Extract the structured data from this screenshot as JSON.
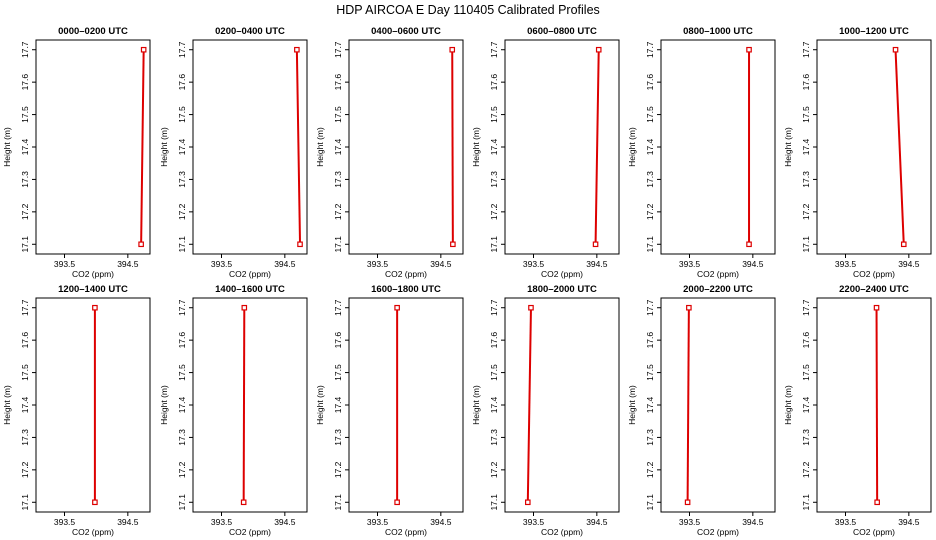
{
  "title": "HDP AIRCOA E  Day 110405  Calibrated Profiles",
  "colors": {
    "series": "#dd0000",
    "axis": "#000000",
    "background": "#ffffff"
  },
  "chart_data": [
    {
      "type": "line",
      "title": "0000–0200 UTC",
      "xlabel": "CO2 (ppm)",
      "ylabel": "Height (m)",
      "xlim": [
        393.05,
        394.85
      ],
      "ylim": [
        17.07,
        17.73
      ],
      "xticks": [
        393.5,
        394.5
      ],
      "xtick_labels": [
        "393.5",
        "394.5"
      ],
      "yticks": [
        17.1,
        17.2,
        17.3,
        17.4,
        17.5,
        17.6,
        17.7
      ],
      "ytick_labels": [
        "17.1",
        "17.2",
        "17.3",
        "17.4",
        "17.5",
        "17.6",
        "17.7"
      ],
      "series": [
        {
          "x": [
            394.71,
            394.75
          ],
          "y": [
            17.1,
            17.7
          ]
        }
      ]
    },
    {
      "type": "line",
      "title": "0200–0400 UTC",
      "xlabel": "CO2 (ppm)",
      "ylabel": "Height (m)",
      "xlim": [
        393.05,
        394.85
      ],
      "ylim": [
        17.07,
        17.73
      ],
      "xticks": [
        393.5,
        394.5
      ],
      "xtick_labels": [
        "393.5",
        "394.5"
      ],
      "yticks": [
        17.1,
        17.2,
        17.3,
        17.4,
        17.5,
        17.6,
        17.7
      ],
      "ytick_labels": [
        "17.1",
        "17.2",
        "17.3",
        "17.4",
        "17.5",
        "17.6",
        "17.7"
      ],
      "series": [
        {
          "x": [
            394.74,
            394.69
          ],
          "y": [
            17.1,
            17.7
          ]
        }
      ]
    },
    {
      "type": "line",
      "title": "0400–0600 UTC",
      "xlabel": "CO2 (ppm)",
      "ylabel": "Height (m)",
      "xlim": [
        393.05,
        394.85
      ],
      "ylim": [
        17.07,
        17.73
      ],
      "xticks": [
        393.5,
        394.5
      ],
      "xtick_labels": [
        "393.5",
        "394.5"
      ],
      "yticks": [
        17.1,
        17.2,
        17.3,
        17.4,
        17.5,
        17.6,
        17.7
      ],
      "ytick_labels": [
        "17.1",
        "17.2",
        "17.3",
        "17.4",
        "17.5",
        "17.6",
        "17.7"
      ],
      "series": [
        {
          "x": [
            394.69,
            394.68
          ],
          "y": [
            17.1,
            17.7
          ]
        }
      ]
    },
    {
      "type": "line",
      "title": "0600–0800 UTC",
      "xlabel": "CO2 (ppm)",
      "ylabel": "Height (m)",
      "xlim": [
        393.05,
        394.85
      ],
      "ylim": [
        17.07,
        17.73
      ],
      "xticks": [
        393.5,
        394.5
      ],
      "xtick_labels": [
        "393.5",
        "394.5"
      ],
      "yticks": [
        17.1,
        17.2,
        17.3,
        17.4,
        17.5,
        17.6,
        17.7
      ],
      "ytick_labels": [
        "17.1",
        "17.2",
        "17.3",
        "17.4",
        "17.5",
        "17.6",
        "17.7"
      ],
      "series": [
        {
          "x": [
            394.48,
            394.53
          ],
          "y": [
            17.1,
            17.7
          ]
        }
      ]
    },
    {
      "type": "line",
      "title": "0800–1000 UTC",
      "xlabel": "CO2 (ppm)",
      "ylabel": "Height (m)",
      "xlim": [
        393.05,
        394.85
      ],
      "ylim": [
        17.07,
        17.73
      ],
      "xticks": [
        393.5,
        394.5
      ],
      "xtick_labels": [
        "393.5",
        "394.5"
      ],
      "yticks": [
        17.1,
        17.2,
        17.3,
        17.4,
        17.5,
        17.6,
        17.7
      ],
      "ytick_labels": [
        "17.1",
        "17.2",
        "17.3",
        "17.4",
        "17.5",
        "17.6",
        "17.7"
      ],
      "series": [
        {
          "x": [
            394.44,
            394.44
          ],
          "y": [
            17.1,
            17.7
          ]
        }
      ]
    },
    {
      "type": "line",
      "title": "1000–1200 UTC",
      "xlabel": "CO2 (ppm)",
      "ylabel": "Height (m)",
      "xlim": [
        393.05,
        394.85
      ],
      "ylim": [
        17.07,
        17.73
      ],
      "xticks": [
        393.5,
        394.5
      ],
      "xtick_labels": [
        "393.5",
        "394.5"
      ],
      "yticks": [
        17.1,
        17.2,
        17.3,
        17.4,
        17.5,
        17.6,
        17.7
      ],
      "ytick_labels": [
        "17.1",
        "17.2",
        "17.3",
        "17.4",
        "17.5",
        "17.6",
        "17.7"
      ],
      "series": [
        {
          "x": [
            394.42,
            394.29
          ],
          "y": [
            17.1,
            17.7
          ]
        }
      ]
    },
    {
      "type": "line",
      "title": "1200–1400 UTC",
      "xlabel": "CO2 (ppm)",
      "ylabel": "Height (m)",
      "xlim": [
        393.05,
        394.85
      ],
      "ylim": [
        17.07,
        17.73
      ],
      "xticks": [
        393.5,
        394.5
      ],
      "xtick_labels": [
        "393.5",
        "394.5"
      ],
      "yticks": [
        17.1,
        17.2,
        17.3,
        17.4,
        17.5,
        17.6,
        17.7
      ],
      "ytick_labels": [
        "17.1",
        "17.2",
        "17.3",
        "17.4",
        "17.5",
        "17.6",
        "17.7"
      ],
      "series": [
        {
          "x": [
            393.98,
            393.98
          ],
          "y": [
            17.1,
            17.7
          ]
        }
      ]
    },
    {
      "type": "line",
      "title": "1400–1600 UTC",
      "xlabel": "CO2 (ppm)",
      "ylabel": "Height (m)",
      "xlim": [
        393.05,
        394.85
      ],
      "ylim": [
        17.07,
        17.73
      ],
      "xticks": [
        393.5,
        394.5
      ],
      "xtick_labels": [
        "393.5",
        "394.5"
      ],
      "yticks": [
        17.1,
        17.2,
        17.3,
        17.4,
        17.5,
        17.6,
        17.7
      ],
      "ytick_labels": [
        "17.1",
        "17.2",
        "17.3",
        "17.4",
        "17.5",
        "17.6",
        "17.7"
      ],
      "series": [
        {
          "x": [
            393.85,
            393.86
          ],
          "y": [
            17.1,
            17.7
          ]
        }
      ]
    },
    {
      "type": "line",
      "title": "1600–1800 UTC",
      "xlabel": "CO2 (ppm)",
      "ylabel": "Height (m)",
      "xlim": [
        393.05,
        394.85
      ],
      "ylim": [
        17.07,
        17.73
      ],
      "xticks": [
        393.5,
        394.5
      ],
      "xtick_labels": [
        "393.5",
        "394.5"
      ],
      "yticks": [
        17.1,
        17.2,
        17.3,
        17.4,
        17.5,
        17.6,
        17.7
      ],
      "ytick_labels": [
        "17.1",
        "17.2",
        "17.3",
        "17.4",
        "17.5",
        "17.6",
        "17.7"
      ],
      "series": [
        {
          "x": [
            393.81,
            393.81
          ],
          "y": [
            17.1,
            17.7
          ]
        }
      ]
    },
    {
      "type": "line",
      "title": "1800–2000 UTC",
      "xlabel": "CO2 (ppm)",
      "ylabel": "Height (m)",
      "xlim": [
        393.05,
        394.85
      ],
      "ylim": [
        17.07,
        17.73
      ],
      "xticks": [
        393.5,
        394.5
      ],
      "xtick_labels": [
        "393.5",
        "394.5"
      ],
      "yticks": [
        17.1,
        17.2,
        17.3,
        17.4,
        17.5,
        17.6,
        17.7
      ],
      "ytick_labels": [
        "17.1",
        "17.2",
        "17.3",
        "17.4",
        "17.5",
        "17.6",
        "17.7"
      ],
      "series": [
        {
          "x": [
            393.41,
            393.46
          ],
          "y": [
            17.1,
            17.7
          ]
        }
      ]
    },
    {
      "type": "line",
      "title": "2000–2200 UTC",
      "xlabel": "CO2 (ppm)",
      "ylabel": "Height (m)",
      "xlim": [
        393.05,
        394.85
      ],
      "ylim": [
        17.07,
        17.73
      ],
      "xticks": [
        393.5,
        394.5
      ],
      "xtick_labels": [
        "393.5",
        "394.5"
      ],
      "yticks": [
        17.1,
        17.2,
        17.3,
        17.4,
        17.5,
        17.6,
        17.7
      ],
      "ytick_labels": [
        "17.1",
        "17.2",
        "17.3",
        "17.4",
        "17.5",
        "17.6",
        "17.7"
      ],
      "series": [
        {
          "x": [
            393.47,
            393.49
          ],
          "y": [
            17.1,
            17.7
          ]
        }
      ]
    },
    {
      "type": "line",
      "title": "2200–2400 UTC",
      "xlabel": "CO2 (ppm)",
      "ylabel": "Height (m)",
      "xlim": [
        393.05,
        394.85
      ],
      "ylim": [
        17.07,
        17.73
      ],
      "xticks": [
        393.5,
        394.5
      ],
      "xtick_labels": [
        "393.5",
        "394.5"
      ],
      "yticks": [
        17.1,
        17.2,
        17.3,
        17.4,
        17.5,
        17.6,
        17.7
      ],
      "ytick_labels": [
        "17.1",
        "17.2",
        "17.3",
        "17.4",
        "17.5",
        "17.6",
        "17.7"
      ],
      "series": [
        {
          "x": [
            394.0,
            393.99
          ],
          "y": [
            17.1,
            17.7
          ]
        }
      ]
    }
  ]
}
